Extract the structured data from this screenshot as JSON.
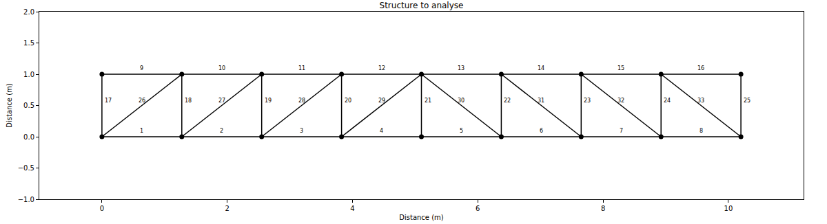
{
  "chart_data": {
    "type": "line",
    "title": "Structure to analyse",
    "x_label": "Distance (m)",
    "y_label": "Distance (m)",
    "xlim": [
      -1.0,
      11.2
    ],
    "ylim": [
      -1.0,
      2.0
    ],
    "xticks": [
      0,
      2,
      4,
      6,
      8,
      10
    ],
    "yticks": [
      {
        "value": -1.0,
        "label": "−1.0"
      },
      {
        "value": -0.5,
        "label": "−0.5"
      },
      {
        "value": 0,
        "label": "0.0"
      },
      {
        "value": 0.5,
        "label": "0.5"
      },
      {
        "value": 1.0,
        "label": "1.0"
      },
      {
        "value": 1.5,
        "label": "1.5"
      },
      {
        "value": 2.0,
        "label": "2.0"
      }
    ],
    "grid": false,
    "color": "#000000",
    "marker": "circle",
    "nodes": {
      "x": [
        0,
        1.275,
        2.55,
        3.825,
        5.1,
        6.375,
        7.65,
        8.925,
        10.2,
        0,
        1.275,
        2.55,
        3.825,
        5.1,
        6.375,
        7.65,
        8.925,
        10.2
      ],
      "y": [
        0,
        0,
        0,
        0,
        0,
        0,
        0,
        0,
        0,
        1,
        1,
        1,
        1,
        1,
        1,
        1,
        1,
        1
      ]
    },
    "members": [
      {
        "label": "1",
        "from": 0,
        "to": 1
      },
      {
        "label": "2",
        "from": 1,
        "to": 2
      },
      {
        "label": "3",
        "from": 2,
        "to": 3
      },
      {
        "label": "4",
        "from": 3,
        "to": 4
      },
      {
        "label": "5",
        "from": 4,
        "to": 5
      },
      {
        "label": "6",
        "from": 5,
        "to": 6
      },
      {
        "label": "7",
        "from": 6,
        "to": 7
      },
      {
        "label": "8",
        "from": 7,
        "to": 8
      },
      {
        "label": "9",
        "from": 9,
        "to": 10
      },
      {
        "label": "10",
        "from": 10,
        "to": 11
      },
      {
        "label": "11",
        "from": 11,
        "to": 12
      },
      {
        "label": "12",
        "from": 12,
        "to": 13
      },
      {
        "label": "13",
        "from": 13,
        "to": 14
      },
      {
        "label": "14",
        "from": 14,
        "to": 15
      },
      {
        "label": "15",
        "from": 15,
        "to": 16
      },
      {
        "label": "16",
        "from": 16,
        "to": 17
      },
      {
        "label": "17",
        "from": 0,
        "to": 9
      },
      {
        "label": "18",
        "from": 1,
        "to": 10
      },
      {
        "label": "19",
        "from": 2,
        "to": 11
      },
      {
        "label": "20",
        "from": 3,
        "to": 12
      },
      {
        "label": "21",
        "from": 4,
        "to": 13
      },
      {
        "label": "22",
        "from": 5,
        "to": 14
      },
      {
        "label": "23",
        "from": 6,
        "to": 15
      },
      {
        "label": "24",
        "from": 7,
        "to": 16
      },
      {
        "label": "25",
        "from": 8,
        "to": 17
      },
      {
        "label": "26",
        "from": 0,
        "to": 10
      },
      {
        "label": "27",
        "from": 1,
        "to": 11
      },
      {
        "label": "28",
        "from": 2,
        "to": 12
      },
      {
        "label": "29",
        "from": 3,
        "to": 13
      },
      {
        "label": "30",
        "from": 13,
        "to": 5
      },
      {
        "label": "31",
        "from": 14,
        "to": 6
      },
      {
        "label": "32",
        "from": 15,
        "to": 7
      },
      {
        "label": "33",
        "from": 16,
        "to": 8
      }
    ]
  }
}
